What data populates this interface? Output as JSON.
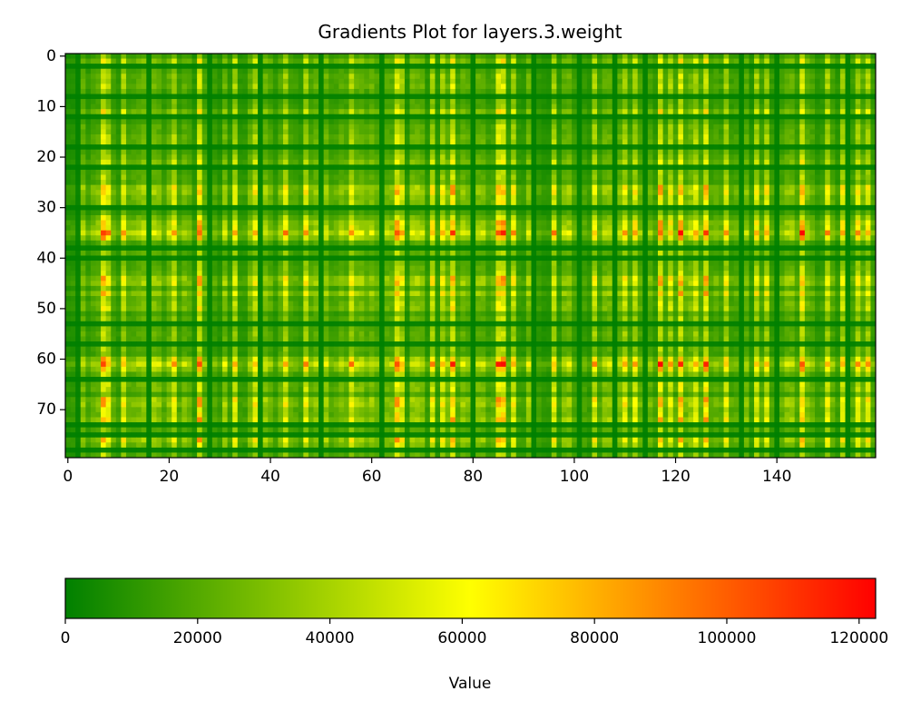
{
  "chart_data": {
    "type": "heatmap",
    "title": "Gradients Plot for layers.3.weight",
    "xlabel": "",
    "ylabel": "",
    "rows": 80,
    "cols": 160,
    "xlim": [
      -0.5,
      159.5
    ],
    "ylim": [
      79.5,
      -0.5
    ],
    "x_ticks": [
      0,
      20,
      40,
      60,
      80,
      100,
      120,
      140
    ],
    "y_ticks": [
      0,
      10,
      20,
      30,
      40,
      50,
      60,
      70
    ],
    "vmin": 0,
    "vmax": 122500,
    "colormap": [
      "#008000",
      "#ffff00",
      "#ff0000"
    ],
    "colorbar": {
      "label": "Value",
      "ticks": [
        0,
        20000,
        40000,
        60000,
        80000,
        100000,
        120000
      ],
      "orientation": "horizontal"
    },
    "strong_columns": [
      7,
      26,
      65,
      76,
      85,
      86,
      117,
      121,
      126,
      145
    ],
    "strong_rows": [
      35,
      61
    ],
    "bright_columns": [
      8,
      11,
      21,
      33,
      37,
      43,
      47,
      56,
      66,
      72,
      74,
      88,
      96,
      104,
      110,
      112,
      119,
      124,
      130,
      136,
      138,
      150,
      153,
      156,
      158
    ],
    "bright_rows": [
      26,
      27,
      33,
      34,
      36,
      44,
      45,
      47,
      60,
      62,
      68,
      69,
      72,
      76
    ],
    "dark_columns": [
      2,
      16,
      28,
      38,
      50,
      62,
      80,
      92,
      101,
      108,
      114,
      133,
      140,
      154
    ],
    "dark_rows": [
      2,
      8,
      12,
      18,
      22,
      30,
      38,
      40,
      53,
      57,
      64,
      73,
      75,
      78
    ],
    "peak_value_approx": 122000
  }
}
